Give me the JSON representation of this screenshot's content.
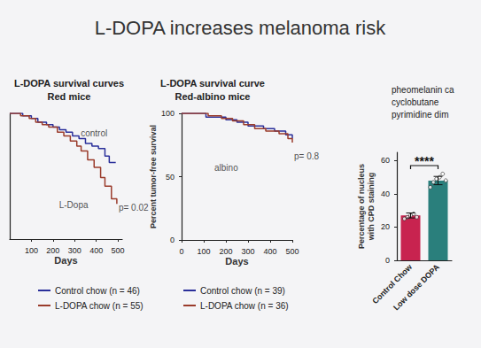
{
  "title": "L-DOPA increases melanoma risk",
  "chart_data": [
    {
      "type": "line",
      "title": [
        "L-DOPA survival curves",
        "Red mice"
      ],
      "x_label": "Days",
      "xlim": [
        0,
        520
      ],
      "xticks": [
        100,
        200,
        300,
        400,
        500
      ],
      "ylim": [
        0,
        100
      ],
      "tick_labels": "x",
      "grid": false,
      "line_style": "step",
      "series": [
        {
          "name": "Control chow (n = 46)",
          "color": "#2a2f9a",
          "x": [
            0,
            60,
            100,
            130,
            170,
            200,
            230,
            260,
            290,
            320,
            350,
            380,
            410,
            440,
            460,
            490
          ],
          "values": [
            100,
            98,
            96,
            93,
            91,
            89,
            87,
            85,
            82,
            80,
            76,
            74,
            72,
            66,
            61,
            61
          ]
        },
        {
          "name": "L-DOPA chow (n = 55)",
          "color": "#9a3b2b",
          "x": [
            0,
            50,
            90,
            120,
            150,
            180,
            220,
            250,
            280,
            310,
            330,
            360,
            390,
            420,
            440,
            470,
            495
          ],
          "values": [
            100,
            98,
            96,
            93,
            91,
            89,
            85,
            82,
            78,
            74,
            70,
            63,
            57,
            49,
            42,
            32,
            28
          ]
        }
      ],
      "annotations": [
        {
          "text": "control",
          "x": 320,
          "y": 84
        },
        {
          "text": "L-Dopa",
          "x": 220,
          "y": 27
        },
        {
          "text": "p= 0.02",
          "x": 495,
          "y": 25
        }
      ]
    },
    {
      "type": "line",
      "title": [
        "L-DOPA survival curve",
        "Red-albino mice"
      ],
      "x_label": "Days",
      "y_label": "Percent tumor-free survival",
      "xlim": [
        0,
        500
      ],
      "xticks": [
        0,
        100,
        200,
        300,
        400,
        500
      ],
      "ylim": [
        0,
        100
      ],
      "yticks": [
        0,
        50,
        100
      ],
      "grid": false,
      "line_style": "step",
      "series": [
        {
          "name": "Control chow (n = 39)",
          "color": "#2a2f9a",
          "x": [
            0,
            100,
            110,
            200,
            250,
            300,
            370,
            420,
            470,
            500
          ],
          "values": [
            100,
            100,
            97,
            95,
            93,
            90,
            88,
            86,
            83,
            80
          ]
        },
        {
          "name": "L-DOPA chow (n = 36)",
          "color": "#9a3b2b",
          "x": [
            0,
            120,
            180,
            230,
            280,
            330,
            380,
            440,
            480,
            500
          ],
          "values": [
            100,
            98,
            96,
            94,
            91,
            88,
            86,
            84,
            80,
            77
          ]
        }
      ],
      "annotations": [
        {
          "text": "albino",
          "x": 140,
          "y": 57
        },
        {
          "text": "p= 0.8",
          "x": 500,
          "y": 66
        }
      ]
    },
    {
      "type": "bar",
      "title": [
        "pheomelanin ca",
        "cyclobutane",
        "pyrimidine dim"
      ],
      "y_label": [
        "Percentage of nucleus",
        "with CPD staining"
      ],
      "categories": [
        "Control Chow",
        "Low dose DOPA"
      ],
      "values": [
        27,
        48
      ],
      "errors": [
        1.5,
        2.5
      ],
      "points": [
        [
          25,
          26,
          27,
          28,
          26
        ],
        [
          44,
          47,
          49,
          50,
          52,
          48
        ]
      ],
      "colors": [
        "#c8234f",
        "#2a7f7c"
      ],
      "ylim": [
        0,
        65
      ],
      "yticks": [
        0,
        20,
        40,
        60
      ],
      "grid": false,
      "annotations": [
        {
          "text": "****",
          "y": 57
        }
      ]
    }
  ]
}
